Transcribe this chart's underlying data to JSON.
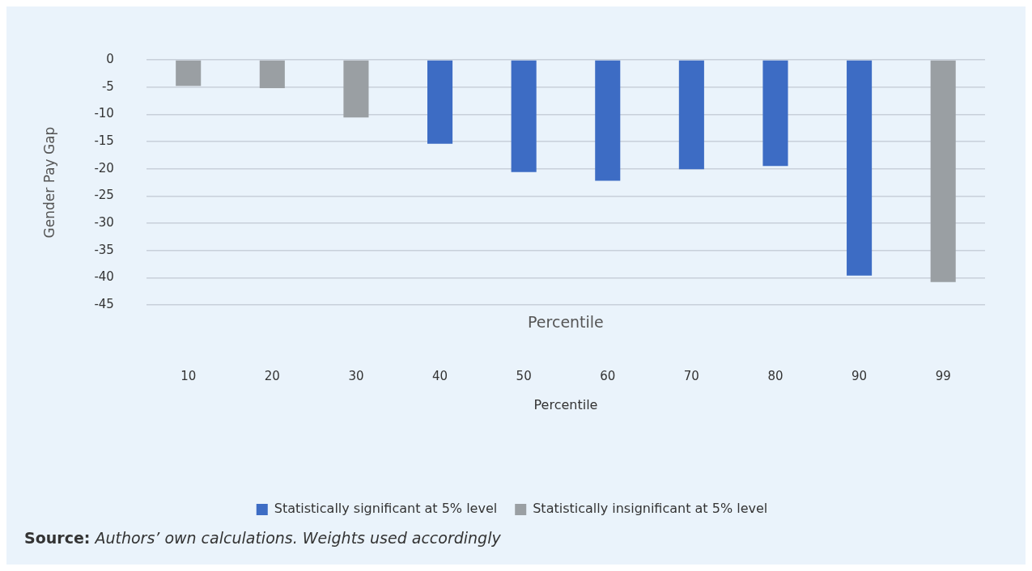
{
  "chart_data": {
    "type": "bar",
    "xlabel": "Percentile",
    "ylabel": "Gender Pay Gap",
    "categories": [
      "10",
      "20",
      "30",
      "40",
      "50",
      "60",
      "70",
      "80",
      "90",
      "99"
    ],
    "series": [
      {
        "name": "Statistically significant at 5% level",
        "color": "#3d6cc4",
        "values": [
          null,
          null,
          null,
          -15.4,
          -20.6,
          -22.2,
          -20.1,
          -19.5,
          -39.6,
          null
        ]
      },
      {
        "name": "Statistically insignificant at 5% level",
        "color": "#9a9fa3",
        "values": [
          -4.8,
          -5.2,
          -10.6,
          null,
          null,
          null,
          null,
          null,
          null,
          -40.8
        ]
      }
    ],
    "ylim": [
      -45,
      0
    ],
    "yticks": [
      0,
      -5,
      -10,
      -15,
      -20,
      -25,
      -30,
      -35,
      -40,
      -45
    ],
    "grid": "y",
    "legend": "bottom",
    "annotations": [
      "Percentile",
      "Source: Authors’ own calculations. Weights used accordingly"
    ]
  }
}
